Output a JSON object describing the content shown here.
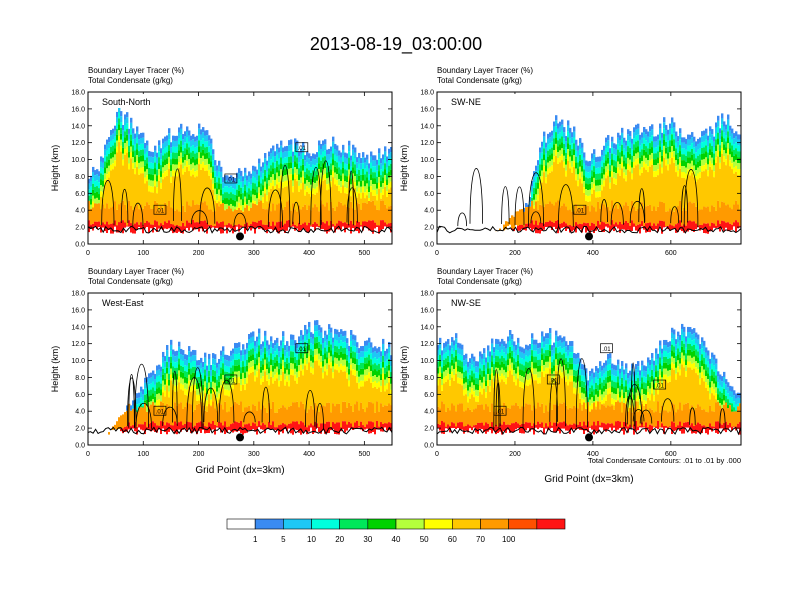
{
  "title": "2013-08-19_03:00:00",
  "legend": {
    "labels": [
      "1",
      "5",
      "10",
      "20",
      "30",
      "40",
      "50",
      "60",
      "70",
      "100"
    ],
    "colors": [
      "#ffffff",
      "#3a8bf2",
      "#1ec8f5",
      "#00ffdd",
      "#00e85a",
      "#00d200",
      "#b4ff3c",
      "#ffff00",
      "#ffc800",
      "#ff9a00",
      "#ff5000",
      "#ff1414"
    ]
  },
  "contour_note": "Total Condensate Contours: .01 to .01 by .000",
  "chart_data": [
    {
      "type": "heatmap",
      "panel_label": "South-North",
      "subtitle_lines": [
        "Boundary Layer Tracer    (%)",
        "Total Condensate    (g/kg)"
      ],
      "ylabel": "Height (km)",
      "xlabel": "",
      "ylim": [
        0,
        18
      ],
      "yticks": [
        "0.0",
        "2.0",
        "4.0",
        "6.0",
        "8.0",
        "10.0",
        "12.0",
        "14.0",
        "16.0",
        "18.0"
      ],
      "xlim": [
        0,
        550
      ],
      "xticks": [
        0,
        100,
        200,
        300,
        400,
        500
      ],
      "marker_x": 275,
      "boxed_contour_labels": [
        ".01",
        ".01",
        ".01"
      ],
      "tracer_color_scale_percent": [
        1,
        5,
        10,
        20,
        30,
        40,
        50,
        60,
        70,
        100
      ]
    },
    {
      "type": "heatmap",
      "panel_label": "SW-NE",
      "subtitle_lines": [
        "Boundary Layer Tracer    (%)",
        "Total Condensate    (g/kg)"
      ],
      "ylabel": "Height (km)",
      "xlabel": "",
      "ylim": [
        0,
        18
      ],
      "yticks": [
        "0.0",
        "2.0",
        "4.0",
        "6.0",
        "8.0",
        "10.0",
        "12.0",
        "14.0",
        "16.0",
        "18.0"
      ],
      "xlim": [
        0,
        780
      ],
      "xticks": [
        0,
        200,
        400,
        600
      ],
      "marker_x": 390,
      "boxed_contour_labels": [
        ".01"
      ],
      "tracer_color_scale_percent": [
        1,
        5,
        10,
        20,
        30,
        40,
        50,
        60,
        70,
        100
      ]
    },
    {
      "type": "heatmap",
      "panel_label": "West-East",
      "subtitle_lines": [
        "Boundary Layer Tracer    (%)",
        "Total Condensate    (g/kg)"
      ],
      "ylabel": "Height (km)",
      "xlabel": "Grid Point (dx=3km)",
      "ylim": [
        0,
        18
      ],
      "yticks": [
        "0.0",
        "2.0",
        "4.0",
        "6.0",
        "8.0",
        "10.0",
        "12.0",
        "14.0",
        "16.0",
        "18.0"
      ],
      "xlim": [
        0,
        550
      ],
      "xticks": [
        0,
        100,
        200,
        300,
        400,
        500
      ],
      "marker_x": 275,
      "boxed_contour_labels": [
        ".01",
        ".01",
        ".01"
      ],
      "tracer_color_scale_percent": [
        1,
        5,
        10,
        20,
        30,
        40,
        50,
        60,
        70,
        100
      ]
    },
    {
      "type": "heatmap",
      "panel_label": "NW-SE",
      "subtitle_lines": [
        "Boundary Layer Tracer    (%)",
        "Total Condensate    (g/kg)"
      ],
      "ylabel": "Height (km)",
      "xlabel": "Grid Point (dx=3km)",
      "ylim": [
        0,
        18
      ],
      "yticks": [
        "0.0",
        "2.0",
        "4.0",
        "6.0",
        "8.0",
        "10.0",
        "12.0",
        "14.0",
        "16.0",
        "18.0"
      ],
      "xlim": [
        0,
        780
      ],
      "xticks": [
        0,
        200,
        400,
        600
      ],
      "marker_x": 390,
      "boxed_contour_labels": [
        ".01",
        ".01",
        ".01",
        ".01"
      ],
      "tracer_color_scale_percent": [
        1,
        5,
        10,
        20,
        30,
        40,
        50,
        60,
        70,
        100
      ]
    }
  ]
}
